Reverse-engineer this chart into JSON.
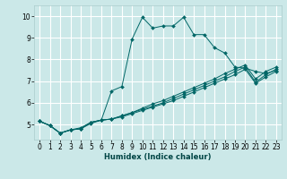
{
  "title": "",
  "xlabel": "Humidex (Indice chaleur)",
  "ylabel": "",
  "xlim": [
    -0.5,
    23.5
  ],
  "ylim": [
    4.3,
    10.5
  ],
  "yticks": [
    5,
    6,
    7,
    8,
    9,
    10
  ],
  "xticks": [
    0,
    1,
    2,
    3,
    4,
    5,
    6,
    7,
    8,
    9,
    10,
    11,
    12,
    13,
    14,
    15,
    16,
    17,
    18,
    19,
    20,
    21,
    22,
    23
  ],
  "bg_color": "#cbe8e8",
  "grid_color": "#ffffff",
  "line_color": "#006666",
  "lines": [
    {
      "x": [
        0,
        1,
        2,
        3,
        4,
        5,
        6,
        7,
        8,
        9,
        10,
        11,
        12,
        13,
        14,
        15,
        16,
        17,
        18,
        19,
        20,
        21,
        22,
        23
      ],
      "y": [
        5.15,
        4.95,
        4.6,
        4.75,
        4.8,
        5.05,
        5.2,
        6.55,
        6.75,
        8.95,
        9.95,
        9.45,
        9.55,
        9.55,
        9.95,
        9.15,
        9.15,
        8.55,
        8.3,
        7.65,
        7.6,
        7.45,
        7.35,
        7.5
      ]
    },
    {
      "x": [
        0,
        1,
        2,
        3,
        4,
        5,
        6,
        7,
        8,
        9,
        10,
        11,
        12,
        13,
        14,
        15,
        16,
        17,
        18,
        19,
        20,
        21,
        22,
        23
      ],
      "y": [
        5.15,
        4.95,
        4.6,
        4.75,
        4.8,
        5.1,
        5.2,
        5.25,
        5.4,
        5.55,
        5.7,
        5.85,
        6.0,
        6.2,
        6.4,
        6.6,
        6.8,
        7.0,
        7.2,
        7.45,
        7.65,
        6.95,
        7.3,
        7.55
      ]
    },
    {
      "x": [
        0,
        1,
        2,
        3,
        4,
        5,
        6,
        7,
        8,
        9,
        10,
        11,
        12,
        13,
        14,
        15,
        16,
        17,
        18,
        19,
        20,
        21,
        22,
        23
      ],
      "y": [
        5.15,
        4.95,
        4.6,
        4.75,
        4.8,
        5.1,
        5.2,
        5.25,
        5.35,
        5.5,
        5.65,
        5.8,
        5.95,
        6.1,
        6.3,
        6.5,
        6.7,
        6.9,
        7.1,
        7.3,
        7.55,
        6.9,
        7.2,
        7.45
      ]
    },
    {
      "x": [
        0,
        1,
        2,
        3,
        4,
        5,
        6,
        7,
        8,
        9,
        10,
        11,
        12,
        13,
        14,
        15,
        16,
        17,
        18,
        19,
        20,
        21,
        22,
        23
      ],
      "y": [
        5.15,
        4.95,
        4.6,
        4.75,
        4.85,
        5.1,
        5.2,
        5.25,
        5.4,
        5.55,
        5.75,
        5.95,
        6.1,
        6.3,
        6.5,
        6.7,
        6.9,
        7.1,
        7.35,
        7.55,
        7.75,
        7.1,
        7.45,
        7.65
      ]
    }
  ]
}
